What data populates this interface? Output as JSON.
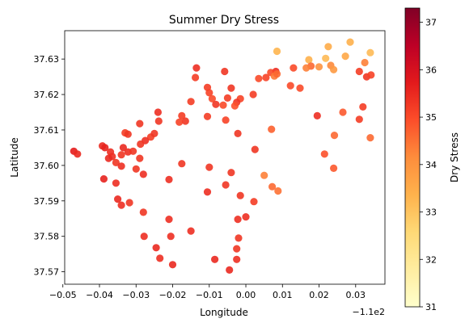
{
  "chart_data": {
    "type": "scatter",
    "title": "Summer Dry Stress",
    "xlabel": "Longitude",
    "ylabel": "Latitude",
    "x_offset_label": "−1.1e2",
    "colorbar_label": "Dry Stress",
    "xlim": [
      -0.0495,
      0.038
    ],
    "ylim": [
      37.5665,
      37.638
    ],
    "x_ticks": [
      -0.05,
      -0.04,
      -0.03,
      -0.02,
      -0.01,
      0.0,
      0.01,
      0.02,
      0.03
    ],
    "x_tick_labels": [
      "−0.05",
      "−0.04",
      "−0.03",
      "−0.02",
      "−0.01",
      "0.00",
      "0.01",
      "0.02",
      "0.03"
    ],
    "y_ticks": [
      37.57,
      37.58,
      37.59,
      37.6,
      37.61,
      37.62,
      37.63
    ],
    "y_tick_labels": [
      "37.57",
      "37.58",
      "37.59",
      "37.60",
      "37.61",
      "37.62",
      "37.63"
    ],
    "colorbar_range": [
      31,
      37.3
    ],
    "colorbar_ticks": [
      31,
      32,
      33,
      34,
      35,
      36,
      37
    ],
    "colorbar_tick_labels": [
      "31",
      "32",
      "33",
      "34",
      "35",
      "36",
      "37"
    ],
    "colormap": "YlOrRd",
    "grid": false,
    "points": [
      {
        "x": 0.0085,
        "y": 37.6322,
        "v": 33.3
      },
      {
        "x": 0.0225,
        "y": 37.6335,
        "v": 33.5
      },
      {
        "x": 0.0285,
        "y": 37.6348,
        "v": 33.4
      },
      {
        "x": 0.034,
        "y": 37.6318,
        "v": 33.2
      },
      {
        "x": 0.0172,
        "y": 37.6298,
        "v": 33.4
      },
      {
        "x": 0.0218,
        "y": 37.6302,
        "v": 33.2
      },
      {
        "x": 0.0272,
        "y": 37.6308,
        "v": 33.6
      },
      {
        "x": 0.0325,
        "y": 37.629,
        "v": 34.3
      },
      {
        "x": 0.0232,
        "y": 37.6282,
        "v": 34.2
      },
      {
        "x": 0.02,
        "y": 37.6278,
        "v": 34.0
      },
      {
        "x": 0.024,
        "y": 37.627,
        "v": 33.9
      },
      {
        "x": 0.0178,
        "y": 37.628,
        "v": 34.6
      },
      {
        "x": 0.0165,
        "y": 37.6275,
        "v": 34.3
      },
      {
        "x": 0.013,
        "y": 37.6275,
        "v": 35.0
      },
      {
        "x": 0.0082,
        "y": 37.6265,
        "v": 35.4
      },
      {
        "x": 0.0068,
        "y": 37.6262,
        "v": 35.0
      },
      {
        "x": 0.0078,
        "y": 37.6252,
        "v": 34.4
      },
      {
        "x": 0.0055,
        "y": 37.6248,
        "v": 35.1
      },
      {
        "x": 0.0085,
        "y": 37.6258,
        "v": 34.6
      },
      {
        "x": 0.031,
        "y": 37.6265,
        "v": 35.2
      },
      {
        "x": 0.033,
        "y": 37.625,
        "v": 35.3
      },
      {
        "x": 0.0342,
        "y": 37.6255,
        "v": 35.1
      },
      {
        "x": 0.0035,
        "y": 37.6245,
        "v": 35.0
      },
      {
        "x": 0.0122,
        "y": 37.6225,
        "v": 35.0
      },
      {
        "x": 0.0148,
        "y": 37.6218,
        "v": 35.0
      },
      {
        "x": 0.002,
        "y": 37.62,
        "v": 35.2
      },
      {
        "x": -0.0015,
        "y": 37.6188,
        "v": 35.1
      },
      {
        "x": -0.0025,
        "y": 37.6178,
        "v": 35.3
      },
      {
        "x": -0.005,
        "y": 37.619,
        "v": 35.2
      },
      {
        "x": -0.004,
        "y": 37.6218,
        "v": 35.3
      },
      {
        "x": -0.0058,
        "y": 37.6265,
        "v": 35.3
      },
      {
        "x": -0.0135,
        "y": 37.6275,
        "v": 35.4
      },
      {
        "x": -0.0138,
        "y": 37.6248,
        "v": 35.2
      },
      {
        "x": -0.0105,
        "y": 37.622,
        "v": 35.2
      },
      {
        "x": -0.01,
        "y": 37.6205,
        "v": 35.1
      },
      {
        "x": -0.0092,
        "y": 37.6188,
        "v": 35.0
      },
      {
        "x": -0.0082,
        "y": 37.6172,
        "v": 35.3
      },
      {
        "x": -0.0062,
        "y": 37.617,
        "v": 35.0
      },
      {
        "x": -0.003,
        "y": 37.6168,
        "v": 34.9
      },
      {
        "x": -0.015,
        "y": 37.618,
        "v": 35.2
      },
      {
        "x": -0.0165,
        "y": 37.6125,
        "v": 35.3
      },
      {
        "x": -0.0175,
        "y": 37.614,
        "v": 35.2
      },
      {
        "x": -0.0182,
        "y": 37.6122,
        "v": 35.1
      },
      {
        "x": -0.024,
        "y": 37.615,
        "v": 35.4
      },
      {
        "x": -0.0238,
        "y": 37.6125,
        "v": 35.3
      },
      {
        "x": -0.0105,
        "y": 37.6138,
        "v": 35.2
      },
      {
        "x": -0.0055,
        "y": 37.6128,
        "v": 35.1
      },
      {
        "x": -0.0022,
        "y": 37.609,
        "v": 35.3
      },
      {
        "x": 0.007,
        "y": 37.6102,
        "v": 34.7
      },
      {
        "x": 0.0195,
        "y": 37.614,
        "v": 35.4
      },
      {
        "x": 0.0265,
        "y": 37.615,
        "v": 34.8
      },
      {
        "x": 0.032,
        "y": 37.6165,
        "v": 35.2
      },
      {
        "x": 0.031,
        "y": 37.613,
        "v": 35.2
      },
      {
        "x": 0.034,
        "y": 37.6078,
        "v": 34.6
      },
      {
        "x": 0.0242,
        "y": 37.6085,
        "v": 34.6
      },
      {
        "x": 0.0215,
        "y": 37.6032,
        "v": 34.9
      },
      {
        "x": 0.024,
        "y": 37.5992,
        "v": 34.8
      },
      {
        "x": 0.0025,
        "y": 37.6045,
        "v": 35.3
      },
      {
        "x": 0.005,
        "y": 37.5972,
        "v": 34.3
      },
      {
        "x": 0.0072,
        "y": 37.594,
        "v": 34.6
      },
      {
        "x": 0.0088,
        "y": 37.5928,
        "v": 34.5
      },
      {
        "x": -0.029,
        "y": 37.6118,
        "v": 35.3
      },
      {
        "x": -0.033,
        "y": 37.6092,
        "v": 35.2
      },
      {
        "x": -0.0322,
        "y": 37.6088,
        "v": 35.3
      },
      {
        "x": -0.026,
        "y": 37.608,
        "v": 35.2
      },
      {
        "x": -0.0275,
        "y": 37.607,
        "v": 35.4
      },
      {
        "x": -0.0288,
        "y": 37.606,
        "v": 35.3
      },
      {
        "x": -0.025,
        "y": 37.609,
        "v": 35.3
      },
      {
        "x": -0.0335,
        "y": 37.605,
        "v": 35.5
      },
      {
        "x": -0.0322,
        "y": 37.6038,
        "v": 35.4
      },
      {
        "x": -0.034,
        "y": 37.603,
        "v": 35.3
      },
      {
        "x": -0.0308,
        "y": 37.604,
        "v": 35.3
      },
      {
        "x": -0.0392,
        "y": 37.6055,
        "v": 35.5
      },
      {
        "x": -0.0385,
        "y": 37.605,
        "v": 35.6
      },
      {
        "x": -0.037,
        "y": 37.6038,
        "v": 35.4
      },
      {
        "x": -0.0365,
        "y": 37.6025,
        "v": 35.4
      },
      {
        "x": -0.0375,
        "y": 37.602,
        "v": 35.5
      },
      {
        "x": -0.0355,
        "y": 37.6008,
        "v": 35.3
      },
      {
        "x": -0.034,
        "y": 37.5998,
        "v": 35.4
      },
      {
        "x": -0.029,
        "y": 37.602,
        "v": 35.3
      },
      {
        "x": -0.03,
        "y": 37.599,
        "v": 35.3
      },
      {
        "x": -0.028,
        "y": 37.5975,
        "v": 35.4
      },
      {
        "x": -0.047,
        "y": 37.604,
        "v": 35.7
      },
      {
        "x": -0.046,
        "y": 37.6032,
        "v": 35.5
      },
      {
        "x": -0.0175,
        "y": 37.6005,
        "v": 35.3
      },
      {
        "x": -0.01,
        "y": 37.5995,
        "v": 35.3
      },
      {
        "x": -0.0388,
        "y": 37.5962,
        "v": 35.6
      },
      {
        "x": -0.0355,
        "y": 37.595,
        "v": 35.4
      },
      {
        "x": -0.021,
        "y": 37.596,
        "v": 35.4
      },
      {
        "x": -0.004,
        "y": 37.598,
        "v": 35.3
      },
      {
        "x": -0.035,
        "y": 37.5905,
        "v": 35.5
      },
      {
        "x": -0.034,
        "y": 37.5888,
        "v": 35.4
      },
      {
        "x": -0.0318,
        "y": 37.5895,
        "v": 35.3
      },
      {
        "x": -0.0105,
        "y": 37.5925,
        "v": 35.4
      },
      {
        "x": -0.0055,
        "y": 37.5945,
        "v": 35.3
      },
      {
        "x": -0.0015,
        "y": 37.5915,
        "v": 35.3
      },
      {
        "x": 0.0022,
        "y": 37.5898,
        "v": 35.2
      },
      {
        "x": -0.028,
        "y": 37.5868,
        "v": 35.3
      },
      {
        "x": -0.021,
        "y": 37.5848,
        "v": 35.4
      },
      {
        "x": -0.0022,
        "y": 37.5848,
        "v": 35.4
      },
      {
        "x": 0.0,
        "y": 37.5855,
        "v": 35.4
      },
      {
        "x": -0.0278,
        "y": 37.58,
        "v": 35.4
      },
      {
        "x": -0.0205,
        "y": 37.58,
        "v": 35.4
      },
      {
        "x": -0.015,
        "y": 37.5815,
        "v": 35.4
      },
      {
        "x": -0.002,
        "y": 37.5795,
        "v": 35.3
      },
      {
        "x": -0.0245,
        "y": 37.5768,
        "v": 35.5
      },
      {
        "x": -0.0025,
        "y": 37.5765,
        "v": 35.3
      },
      {
        "x": -0.0235,
        "y": 37.5738,
        "v": 35.4
      },
      {
        "x": -0.02,
        "y": 37.572,
        "v": 35.5
      },
      {
        "x": -0.0085,
        "y": 37.5735,
        "v": 35.5
      },
      {
        "x": -0.0025,
        "y": 37.5735,
        "v": 35.4
      },
      {
        "x": -0.0045,
        "y": 37.5705,
        "v": 35.5
      }
    ]
  }
}
